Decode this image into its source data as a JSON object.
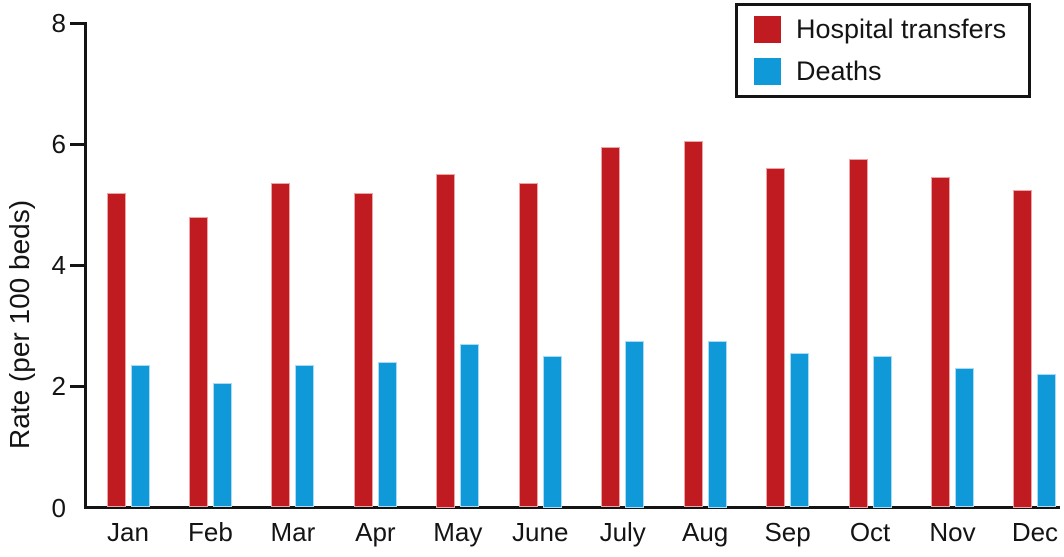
{
  "chart_data": {
    "type": "bar",
    "title": "",
    "xlabel": "",
    "ylabel": "Rate (per 100 beds)",
    "ylim": [
      0,
      8
    ],
    "yticks": [
      0,
      2,
      4,
      6,
      8
    ],
    "grid": false,
    "legend_position": "top-right",
    "background_color": "#ffffff",
    "axis_color": "#141414",
    "categories": [
      "Jan",
      "Feb",
      "Mar",
      "Apr",
      "May",
      "June",
      "July",
      "Aug",
      "Sep",
      "Oct",
      "Nov",
      "Dec"
    ],
    "series": [
      {
        "name": "Hospital transfers",
        "color": "#c11b22",
        "edge_color": "#eda4a4",
        "values": [
          5.2,
          4.8,
          5.35,
          5.2,
          5.5,
          5.35,
          5.95,
          6.05,
          5.6,
          5.75,
          5.45,
          5.25
        ]
      },
      {
        "name": "Deaths",
        "color": "#0f99d8",
        "edge_color": "#a9dbf5",
        "values": [
          2.35,
          2.05,
          2.35,
          2.4,
          2.7,
          2.5,
          2.75,
          2.75,
          2.55,
          2.5,
          2.3,
          2.2
        ]
      }
    ]
  }
}
